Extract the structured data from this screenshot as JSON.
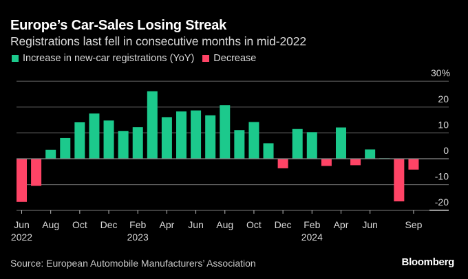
{
  "header": {
    "title": "Europe’s Car-Sales Losing Streak",
    "subtitle": "Registrations last fell in consecutive months in mid-2022"
  },
  "legend": [
    {
      "label": "Increase in new-car registrations (YoY)",
      "color": "#1CC98C"
    },
    {
      "label": "Decrease",
      "color": "#FF4466"
    }
  ],
  "footer": {
    "source": "Source: European Automobile Manufacturers’ Association",
    "brand": "Bloomberg"
  },
  "chart_data": {
    "type": "bar",
    "title": "Europe’s Car-Sales Losing Streak",
    "subtitle": "Registrations last fell in consecutive months in mid-2022",
    "xlabel": "",
    "ylabel": "",
    "ylim": [
      -20,
      30
    ],
    "y_ticks": [
      30,
      20,
      10,
      0,
      -10,
      -20
    ],
    "y_tick_labels": [
      "30%",
      "20",
      "10",
      "0",
      "-10",
      "-20"
    ],
    "grid": true,
    "legend_position": "top-left",
    "positive_color": "#1CC98C",
    "negative_color": "#FF4466",
    "categories": [
      "Jun 2022",
      "Jul 2022",
      "Aug 2022",
      "Sep 2022",
      "Oct 2022",
      "Nov 2022",
      "Dec 2022",
      "Jan 2023",
      "Feb 2023",
      "Mar 2023",
      "Apr 2023",
      "May 2023",
      "Jun 2023",
      "Jul 2023",
      "Aug 2023",
      "Sep 2023",
      "Oct 2023",
      "Nov 2023",
      "Dec 2023",
      "Jan 2024",
      "Feb 2024",
      "Mar 2024",
      "Apr 2024",
      "May 2024",
      "Jun 2024",
      "Jul 2024",
      "Aug 2024",
      "Sep 2024"
    ],
    "values": [
      -16.7,
      -10.5,
      3.5,
      8.0,
      14.1,
      17.5,
      14.8,
      10.7,
      12.2,
      26.1,
      16.1,
      18.3,
      18.7,
      16.8,
      20.7,
      11.1,
      14.2,
      6.0,
      -3.7,
      11.5,
      10.3,
      -2.8,
      12.1,
      -2.5,
      3.6,
      0.2,
      -16.5,
      -4.2
    ],
    "x_ticks": [
      {
        "index": 0,
        "label": "Jun",
        "year": "2022"
      },
      {
        "index": 2,
        "label": "Aug",
        "year": ""
      },
      {
        "index": 4,
        "label": "Oct",
        "year": ""
      },
      {
        "index": 6,
        "label": "Dec",
        "year": ""
      },
      {
        "index": 8,
        "label": "Feb",
        "year": "2023"
      },
      {
        "index": 10,
        "label": "Apr",
        "year": ""
      },
      {
        "index": 12,
        "label": "Jun",
        "year": ""
      },
      {
        "index": 14,
        "label": "Aug",
        "year": ""
      },
      {
        "index": 16,
        "label": "Oct",
        "year": ""
      },
      {
        "index": 18,
        "label": "Dec",
        "year": ""
      },
      {
        "index": 20,
        "label": "Feb",
        "year": "2024"
      },
      {
        "index": 22,
        "label": "Apr",
        "year": ""
      },
      {
        "index": 24,
        "label": "Jun",
        "year": ""
      },
      {
        "index": 27,
        "label": "Sep",
        "year": ""
      }
    ]
  }
}
